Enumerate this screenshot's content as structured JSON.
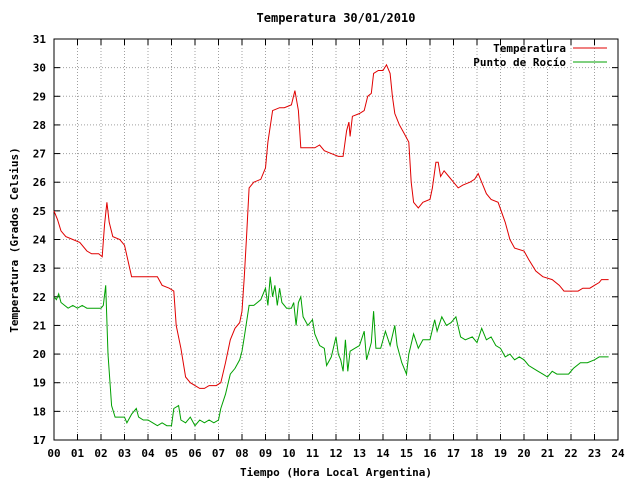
{
  "chart_data": {
    "type": "line",
    "title": "Temperatura 30/01/2010",
    "xlabel": "Tiempo (Hora Local Argentina)",
    "ylabel": "Temperatura (Grados Celsius)",
    "xlim": [
      0,
      24
    ],
    "ylim": [
      17,
      31
    ],
    "x_ticks": [
      "00",
      "01",
      "02",
      "03",
      "04",
      "05",
      "06",
      "07",
      "08",
      "09",
      "10",
      "11",
      "12",
      "13",
      "14",
      "15",
      "16",
      "17",
      "18",
      "19",
      "20",
      "21",
      "22",
      "23",
      "24"
    ],
    "y_ticks": [
      "17",
      "18",
      "19",
      "20",
      "21",
      "22",
      "23",
      "24",
      "25",
      "26",
      "27",
      "28",
      "29",
      "30",
      "31"
    ],
    "grid": true,
    "legend_position": "top-right",
    "series": [
      {
        "name": "Temperatura",
        "color": "#e00000",
        "points": [
          [
            0.0,
            25.0
          ],
          [
            0.15,
            24.7
          ],
          [
            0.3,
            24.3
          ],
          [
            0.5,
            24.1
          ],
          [
            0.8,
            24.0
          ],
          [
            1.1,
            23.9
          ],
          [
            1.4,
            23.6
          ],
          [
            1.6,
            23.5
          ],
          [
            1.9,
            23.5
          ],
          [
            2.05,
            23.4
          ],
          [
            2.15,
            24.5
          ],
          [
            2.25,
            25.3
          ],
          [
            2.35,
            24.6
          ],
          [
            2.5,
            24.1
          ],
          [
            2.8,
            24.0
          ],
          [
            3.0,
            23.8
          ],
          [
            3.3,
            22.7
          ],
          [
            3.6,
            22.7
          ],
          [
            4.0,
            22.7
          ],
          [
            4.4,
            22.7
          ],
          [
            4.6,
            22.4
          ],
          [
            4.9,
            22.3
          ],
          [
            5.1,
            22.2
          ],
          [
            5.2,
            21.0
          ],
          [
            5.4,
            20.2
          ],
          [
            5.6,
            19.2
          ],
          [
            5.8,
            19.0
          ],
          [
            6.0,
            18.9
          ],
          [
            6.2,
            18.8
          ],
          [
            6.4,
            18.8
          ],
          [
            6.6,
            18.9
          ],
          [
            6.9,
            18.9
          ],
          [
            7.1,
            19.0
          ],
          [
            7.3,
            19.7
          ],
          [
            7.5,
            20.5
          ],
          [
            7.7,
            20.9
          ],
          [
            7.9,
            21.1
          ],
          [
            8.0,
            21.5
          ],
          [
            8.1,
            22.7
          ],
          [
            8.2,
            24.2
          ],
          [
            8.3,
            25.8
          ],
          [
            8.5,
            26.0
          ],
          [
            8.8,
            26.1
          ],
          [
            9.0,
            26.5
          ],
          [
            9.1,
            27.4
          ],
          [
            9.3,
            28.5
          ],
          [
            9.6,
            28.6
          ],
          [
            9.8,
            28.6
          ],
          [
            10.1,
            28.7
          ],
          [
            10.25,
            29.2
          ],
          [
            10.4,
            28.5
          ],
          [
            10.5,
            27.2
          ],
          [
            10.8,
            27.2
          ],
          [
            11.1,
            27.2
          ],
          [
            11.3,
            27.3
          ],
          [
            11.5,
            27.1
          ],
          [
            11.8,
            27.0
          ],
          [
            12.1,
            26.9
          ],
          [
            12.3,
            26.9
          ],
          [
            12.45,
            27.8
          ],
          [
            12.55,
            28.1
          ],
          [
            12.6,
            27.6
          ],
          [
            12.7,
            28.3
          ],
          [
            13.0,
            28.4
          ],
          [
            13.2,
            28.5
          ],
          [
            13.35,
            29.0
          ],
          [
            13.5,
            29.1
          ],
          [
            13.6,
            29.8
          ],
          [
            13.8,
            29.9
          ],
          [
            14.0,
            29.9
          ],
          [
            14.15,
            30.1
          ],
          [
            14.3,
            29.8
          ],
          [
            14.4,
            29.0
          ],
          [
            14.5,
            28.4
          ],
          [
            14.7,
            28.0
          ],
          [
            14.9,
            27.7
          ],
          [
            15.1,
            27.4
          ],
          [
            15.2,
            26.0
          ],
          [
            15.3,
            25.3
          ],
          [
            15.5,
            25.1
          ],
          [
            15.7,
            25.3
          ],
          [
            16.0,
            25.4
          ],
          [
            16.1,
            25.8
          ],
          [
            16.25,
            26.7
          ],
          [
            16.35,
            26.7
          ],
          [
            16.45,
            26.2
          ],
          [
            16.6,
            26.4
          ],
          [
            16.8,
            26.2
          ],
          [
            17.0,
            26.0
          ],
          [
            17.2,
            25.8
          ],
          [
            17.4,
            25.9
          ],
          [
            17.7,
            26.0
          ],
          [
            17.9,
            26.1
          ],
          [
            18.05,
            26.3
          ],
          [
            18.2,
            26.0
          ],
          [
            18.4,
            25.6
          ],
          [
            18.6,
            25.4
          ],
          [
            18.9,
            25.3
          ],
          [
            19.2,
            24.6
          ],
          [
            19.4,
            24.0
          ],
          [
            19.6,
            23.7
          ],
          [
            20.0,
            23.6
          ],
          [
            20.2,
            23.3
          ],
          [
            20.5,
            22.9
          ],
          [
            20.8,
            22.7
          ],
          [
            21.2,
            22.6
          ],
          [
            21.5,
            22.4
          ],
          [
            21.7,
            22.2
          ],
          [
            22.0,
            22.2
          ],
          [
            22.3,
            22.2
          ],
          [
            22.5,
            22.3
          ],
          [
            22.8,
            22.3
          ],
          [
            23.0,
            22.4
          ],
          [
            23.2,
            22.5
          ],
          [
            23.3,
            22.6
          ],
          [
            23.6,
            22.6
          ]
        ]
      },
      {
        "name": "Punto de Rocío",
        "color": "#00a000",
        "points": [
          [
            0.0,
            22.0
          ],
          [
            0.1,
            21.9
          ],
          [
            0.2,
            22.1
          ],
          [
            0.3,
            21.8
          ],
          [
            0.45,
            21.7
          ],
          [
            0.6,
            21.6
          ],
          [
            0.8,
            21.7
          ],
          [
            1.0,
            21.6
          ],
          [
            1.2,
            21.7
          ],
          [
            1.4,
            21.6
          ],
          [
            1.7,
            21.6
          ],
          [
            2.0,
            21.6
          ],
          [
            2.1,
            21.7
          ],
          [
            2.2,
            22.4
          ],
          [
            2.3,
            20.0
          ],
          [
            2.45,
            18.2
          ],
          [
            2.6,
            17.8
          ],
          [
            2.8,
            17.8
          ],
          [
            3.0,
            17.8
          ],
          [
            3.1,
            17.6
          ],
          [
            3.3,
            17.9
          ],
          [
            3.5,
            18.1
          ],
          [
            3.6,
            17.8
          ],
          [
            3.8,
            17.7
          ],
          [
            4.0,
            17.7
          ],
          [
            4.2,
            17.6
          ],
          [
            4.4,
            17.5
          ],
          [
            4.6,
            17.6
          ],
          [
            4.8,
            17.5
          ],
          [
            5.0,
            17.5
          ],
          [
            5.1,
            18.1
          ],
          [
            5.3,
            18.2
          ],
          [
            5.4,
            17.7
          ],
          [
            5.6,
            17.6
          ],
          [
            5.8,
            17.8
          ],
          [
            6.0,
            17.5
          ],
          [
            6.2,
            17.7
          ],
          [
            6.4,
            17.6
          ],
          [
            6.6,
            17.7
          ],
          [
            6.8,
            17.6
          ],
          [
            7.0,
            17.7
          ],
          [
            7.1,
            18.1
          ],
          [
            7.3,
            18.6
          ],
          [
            7.5,
            19.3
          ],
          [
            7.7,
            19.5
          ],
          [
            7.9,
            19.8
          ],
          [
            8.0,
            20.1
          ],
          [
            8.1,
            20.6
          ],
          [
            8.3,
            21.7
          ],
          [
            8.5,
            21.7
          ],
          [
            8.8,
            21.9
          ],
          [
            9.0,
            22.3
          ],
          [
            9.1,
            21.7
          ],
          [
            9.2,
            22.7
          ],
          [
            9.3,
            22.0
          ],
          [
            9.4,
            22.4
          ],
          [
            9.5,
            21.7
          ],
          [
            9.6,
            22.3
          ],
          [
            9.7,
            21.8
          ],
          [
            9.9,
            21.6
          ],
          [
            10.1,
            21.6
          ],
          [
            10.2,
            21.8
          ],
          [
            10.3,
            21.0
          ],
          [
            10.4,
            21.8
          ],
          [
            10.5,
            22.0
          ],
          [
            10.6,
            21.3
          ],
          [
            10.8,
            21.0
          ],
          [
            11.0,
            21.2
          ],
          [
            11.1,
            20.7
          ],
          [
            11.3,
            20.3
          ],
          [
            11.5,
            20.2
          ],
          [
            11.6,
            19.6
          ],
          [
            11.8,
            19.9
          ],
          [
            12.0,
            20.6
          ],
          [
            12.1,
            20.0
          ],
          [
            12.2,
            19.8
          ],
          [
            12.3,
            19.4
          ],
          [
            12.4,
            20.5
          ],
          [
            12.5,
            19.4
          ],
          [
            12.6,
            20.1
          ],
          [
            12.8,
            20.2
          ],
          [
            13.0,
            20.3
          ],
          [
            13.2,
            20.8
          ],
          [
            13.3,
            19.8
          ],
          [
            13.5,
            20.4
          ],
          [
            13.6,
            21.5
          ],
          [
            13.7,
            20.2
          ],
          [
            13.9,
            20.2
          ],
          [
            14.1,
            20.8
          ],
          [
            14.3,
            20.3
          ],
          [
            14.5,
            21.0
          ],
          [
            14.6,
            20.3
          ],
          [
            14.8,
            19.7
          ],
          [
            15.0,
            19.3
          ],
          [
            15.1,
            20.0
          ],
          [
            15.3,
            20.7
          ],
          [
            15.5,
            20.2
          ],
          [
            15.7,
            20.5
          ],
          [
            16.0,
            20.5
          ],
          [
            16.2,
            21.2
          ],
          [
            16.3,
            20.8
          ],
          [
            16.5,
            21.3
          ],
          [
            16.7,
            21.0
          ],
          [
            16.9,
            21.1
          ],
          [
            17.1,
            21.3
          ],
          [
            17.3,
            20.6
          ],
          [
            17.5,
            20.5
          ],
          [
            17.8,
            20.6
          ],
          [
            18.0,
            20.4
          ],
          [
            18.2,
            20.9
          ],
          [
            18.4,
            20.5
          ],
          [
            18.6,
            20.6
          ],
          [
            18.8,
            20.3
          ],
          [
            19.0,
            20.2
          ],
          [
            19.2,
            19.9
          ],
          [
            19.4,
            20.0
          ],
          [
            19.6,
            19.8
          ],
          [
            19.8,
            19.9
          ],
          [
            20.0,
            19.8
          ],
          [
            20.2,
            19.6
          ],
          [
            20.4,
            19.5
          ],
          [
            20.6,
            19.4
          ],
          [
            20.8,
            19.3
          ],
          [
            21.0,
            19.2
          ],
          [
            21.2,
            19.4
          ],
          [
            21.4,
            19.3
          ],
          [
            21.6,
            19.3
          ],
          [
            21.9,
            19.3
          ],
          [
            22.1,
            19.5
          ],
          [
            22.4,
            19.7
          ],
          [
            22.7,
            19.7
          ],
          [
            23.0,
            19.8
          ],
          [
            23.2,
            19.9
          ],
          [
            23.6,
            19.9
          ]
        ]
      }
    ]
  }
}
